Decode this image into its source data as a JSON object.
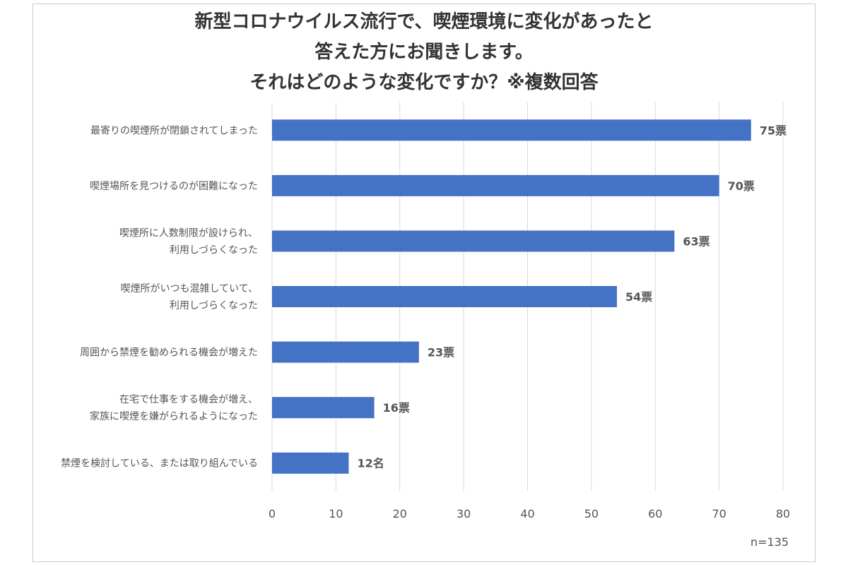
{
  "chart_data": {
    "type": "bar",
    "orientation": "horizontal",
    "title_lines": [
      "新型コロナウイルス流行で、喫煙環境に変化があったと",
      "答えた方にお聞きします。",
      "それはどのような変化ですか？※複数回答"
    ],
    "categories": [
      [
        "最寄りの喫煙所が閉鎖されてしまった"
      ],
      [
        "喫煙場所を見つけるのが困難になった"
      ],
      [
        "喫煙所に人数制限が設けられ、",
        "利用しづらくなった"
      ],
      [
        "喫煙所がいつも混雑していて、",
        "利用しづらくなった"
      ],
      [
        "周囲から禁煙を勧められる機会が増えた"
      ],
      [
        "在宅で仕事をする機会が増え、",
        "家族に喫煙を嫌がられるようになった"
      ],
      [
        "禁煙を検討している、または取り組んでいる"
      ]
    ],
    "values": [
      75,
      70,
      63,
      54,
      23,
      16,
      12
    ],
    "data_labels": [
      "75票",
      "70票",
      "63票",
      "54票",
      "23票",
      "16票",
      "12名"
    ],
    "xlim": [
      0,
      80
    ],
    "xticks": [
      0,
      10,
      20,
      30,
      40,
      50,
      60,
      70,
      80
    ],
    "grid": "vertical",
    "bar_color": "#4472C4",
    "note": "n=135"
  }
}
